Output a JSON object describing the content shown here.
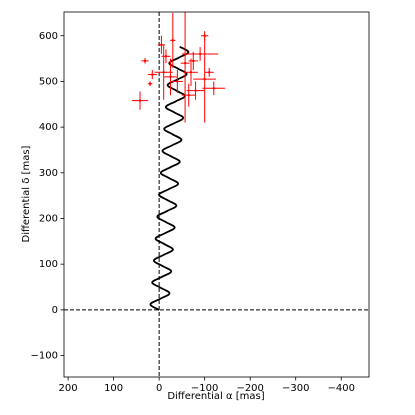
{
  "chart_data": {
    "type": "scatter",
    "xlabel": "Differential α [mas]",
    "ylabel": "Differential δ [mas]",
    "xlim": [
      209,
      -461
    ],
    "ylim": [
      -147,
      652
    ],
    "xticks": [
      200,
      100,
      0,
      {
        "value": -100,
        "label": "−100"
      },
      {
        "value": -200,
        "label": "−200"
      },
      {
        "value": -300,
        "label": "−300"
      },
      {
        "value": -400,
        "label": "−400"
      }
    ],
    "yticks": [
      {
        "value": -100,
        "label": "−100"
      },
      0,
      100,
      200,
      300,
      400,
      500,
      600
    ],
    "hlines": [
      0
    ],
    "vlines": [
      0
    ],
    "series": [
      {
        "type": "line",
        "color": "#000000",
        "x": [
          0,
          19.1,
          -1.9,
          -22.8,
          -3.8,
          15.3,
          -5.6,
          -26.6,
          -7.5,
          11.5,
          -9.4,
          -30.3,
          -11.3,
          7.8,
          -13.2,
          -34.1,
          -15.0,
          4.0,
          -16.9,
          -37.9,
          -18.8,
          0.3,
          -20.7,
          -41.6,
          -22.6,
          -3.5,
          -24.4,
          -45.4,
          -26.3,
          -7.3,
          -28.2,
          -49.1,
          -30.1,
          -11.0,
          -32.0,
          -52.9,
          -33.8,
          -14.8,
          -35.7,
          -56.7,
          -37.6,
          -18.5,
          -39.5,
          -60.4,
          -41.4,
          -22.3,
          -43.2,
          -64.2,
          -45.1
        ],
        "y": [
          0,
          12,
          24,
          36,
          48,
          60,
          72,
          84,
          96,
          108,
          120,
          132,
          144,
          156,
          168,
          180,
          192,
          204,
          216,
          228,
          240,
          252,
          264,
          276,
          288,
          300,
          312,
          324,
          336,
          348,
          360,
          372,
          384,
          396,
          408,
          420,
          432,
          444,
          456,
          468,
          480,
          492,
          504,
          516,
          528,
          540,
          552,
          564,
          576
        ]
      },
      {
        "type": "errorbar",
        "color": "#ff0000",
        "x": [
          42,
          31,
          -57,
          -100,
          -120,
          -90,
          -100,
          -10,
          -25,
          -70,
          -80,
          -5,
          -15,
          -40,
          -65,
          15,
          -30,
          -75,
          -110,
          20
        ],
        "y": [
          458,
          545,
          540,
          505,
          485,
          560,
          600,
          520,
          510,
          520,
          480,
          580,
          555,
          500,
          470,
          515,
          590,
          545,
          520,
          495
        ],
        "xerr": [
          18,
          8,
          10,
          25,
          25,
          40,
          8,
          20,
          15,
          15,
          20,
          8,
          10,
          12,
          15,
          10,
          6,
          10,
          10,
          5
        ],
        "yerr": [
          20,
          6,
          130,
          95,
          15,
          15,
          10,
          60,
          40,
          30,
          20,
          20,
          15,
          25,
          25,
          10,
          60,
          20,
          10,
          5
        ]
      }
    ]
  }
}
